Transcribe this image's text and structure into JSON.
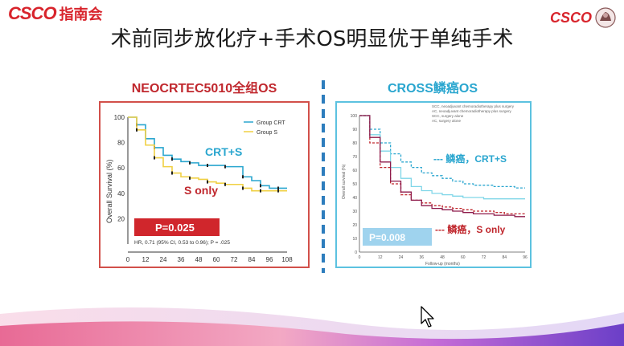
{
  "header": {
    "logo_left_brand": "CSCO",
    "logo_left_text": "指南会",
    "logo_right_brand": "CSCO",
    "title": "术前同步放化疗+手术OS明显优于单纯手术"
  },
  "left_panel": {
    "title": "NEOCRTEC5010全组OS",
    "legend": [
      "Group CRT",
      "Group S"
    ],
    "label_crt": "CRT+S",
    "label_s": "S only",
    "p_value": "P=0.025",
    "hr_text": "HR, 0.71 (95% CI, 0.53 to 0.96); P = .025",
    "ylabel": "Overall Survival (%)",
    "yticks": [
      "100",
      "80",
      "60",
      "40",
      "20"
    ],
    "xticks": [
      "0",
      "12",
      "24",
      "36",
      "48",
      "60",
      "72",
      "84",
      "96",
      "108"
    ]
  },
  "right_panel": {
    "title": "CROSS鳞癌OS",
    "legend": [
      "SCC, neoadjuvant chemoradiotherapy plus surgery",
      "AC, neoadjuvant chemoradiotherapy plus surgery",
      "SCC, surgery alone",
      "AC, surgery alone"
    ],
    "label_crt": "--- 鳞癌，CRT+S",
    "label_s": "--- 鳞癌，S only",
    "p_value": "P=0.008",
    "ylabel": "Overall survival (%)",
    "xlabel": "Follow-up (months)",
    "yticks": [
      "100",
      "90",
      "80",
      "70",
      "60",
      "50",
      "40",
      "30",
      "20",
      "10",
      "0"
    ],
    "xticks": [
      "0",
      "12",
      "24",
      "36",
      "48",
      "60",
      "72",
      "84",
      "96"
    ]
  },
  "colors": {
    "brand_red": "#d8242c",
    "crt_blue": "#2aa6cf",
    "p_box_red": "#d0262c",
    "p_box_blue": "#9fd3ee"
  },
  "chart_data": [
    {
      "type": "line",
      "title": "NEOCRTEC5010全组OS",
      "xlabel": "",
      "ylabel": "Overall Survival (%)",
      "xlim": [
        0,
        108
      ],
      "ylim": [
        0,
        100
      ],
      "series": [
        {
          "name": "Group CRT",
          "x": [
            0,
            6,
            12,
            18,
            24,
            30,
            36,
            42,
            48,
            54,
            60,
            66,
            72,
            78,
            84,
            90,
            96,
            102,
            108
          ],
          "y": [
            100,
            94,
            83,
            76,
            70,
            67,
            65,
            64,
            62,
            62,
            62,
            61,
            61,
            53,
            50,
            46,
            44,
            44,
            44
          ]
        },
        {
          "name": "Group S",
          "x": [
            0,
            6,
            12,
            18,
            24,
            30,
            36,
            42,
            48,
            54,
            60,
            66,
            72,
            78,
            84,
            90,
            96,
            102,
            108
          ],
          "y": [
            100,
            90,
            78,
            68,
            61,
            56,
            53,
            52,
            51,
            49,
            48,
            47,
            47,
            44,
            42,
            42,
            42,
            42,
            42
          ]
        }
      ]
    },
    {
      "type": "line",
      "title": "CROSS鳞癌OS",
      "xlabel": "Follow-up (months)",
      "ylabel": "Overall survival (%)",
      "xlim": [
        0,
        96
      ],
      "ylim": [
        0,
        100
      ],
      "series": [
        {
          "name": "SCC, neoadjuvant chemoradiotherapy plus surgery",
          "x": [
            0,
            6,
            12,
            18,
            24,
            30,
            36,
            42,
            48,
            54,
            60,
            66,
            72,
            78,
            84,
            90,
            96
          ],
          "y": [
            100,
            90,
            80,
            72,
            66,
            62,
            58,
            56,
            54,
            52,
            50,
            49,
            49,
            48,
            48,
            47,
            47
          ]
        },
        {
          "name": "AC, neoadjuvant chemoradiotherapy plus surgery",
          "x": [
            0,
            6,
            12,
            18,
            24,
            30,
            36,
            42,
            48,
            54,
            60,
            66,
            72,
            78,
            84,
            90,
            96
          ],
          "y": [
            100,
            86,
            74,
            62,
            54,
            48,
            45,
            43,
            42,
            41,
            40,
            40,
            39,
            39,
            39,
            39,
            39
          ]
        },
        {
          "name": "SCC, surgery alone",
          "x": [
            0,
            6,
            12,
            18,
            24,
            30,
            36,
            42,
            48,
            54,
            60,
            66,
            72,
            78,
            84,
            90,
            96
          ],
          "y": [
            100,
            80,
            62,
            50,
            42,
            38,
            36,
            34,
            33,
            32,
            31,
            30,
            30,
            29,
            28,
            28,
            28
          ]
        },
        {
          "name": "AC, surgery alone",
          "x": [
            0,
            6,
            12,
            18,
            24,
            30,
            36,
            42,
            48,
            54,
            60,
            66,
            72,
            78,
            84,
            90,
            96
          ],
          "y": [
            100,
            84,
            66,
            52,
            44,
            38,
            34,
            32,
            31,
            30,
            29,
            28,
            28,
            27,
            27,
            26,
            26
          ]
        }
      ]
    }
  ]
}
